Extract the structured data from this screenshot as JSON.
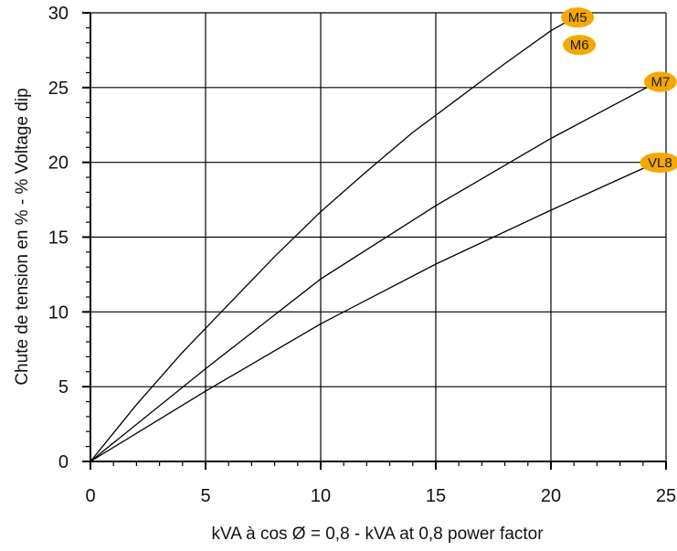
{
  "chart_data": {
    "type": "line",
    "xlabel": "kVA à cos Ø = 0,8 - kVA at 0,8 power factor",
    "ylabel": "Chute de tension en % - % Voltage dip",
    "xlim": [
      0,
      25
    ],
    "ylim": [
      0,
      30
    ],
    "x_ticks": [
      "0",
      "5",
      "10",
      "15",
      "20",
      "25"
    ],
    "y_ticks": [
      "0",
      "5",
      "10",
      "15",
      "20",
      "25",
      "30"
    ],
    "grid": true,
    "label_color": "#f5a800",
    "series": [
      {
        "name": "M5 / M6",
        "labels": [
          "M5",
          "M6"
        ],
        "x": [
          0,
          2,
          4,
          6,
          8,
          10,
          12,
          14,
          16,
          18,
          20,
          20.8
        ],
        "y": [
          0,
          3.8,
          7.3,
          10.5,
          13.7,
          16.7,
          19.4,
          22,
          24.3,
          26.6,
          28.8,
          29.5
        ]
      },
      {
        "name": "M7",
        "labels": [
          "M7"
        ],
        "x": [
          0,
          5,
          10,
          15,
          20,
          24.4
        ],
        "y": [
          0,
          6.2,
          12.2,
          17.1,
          21.6,
          25.2
        ]
      },
      {
        "name": "VL8",
        "labels": [
          "VL8"
        ],
        "x": [
          0,
          5,
          10,
          15,
          20,
          24.3
        ],
        "y": [
          0,
          4.7,
          9.2,
          13.2,
          16.8,
          19.8
        ]
      }
    ]
  }
}
